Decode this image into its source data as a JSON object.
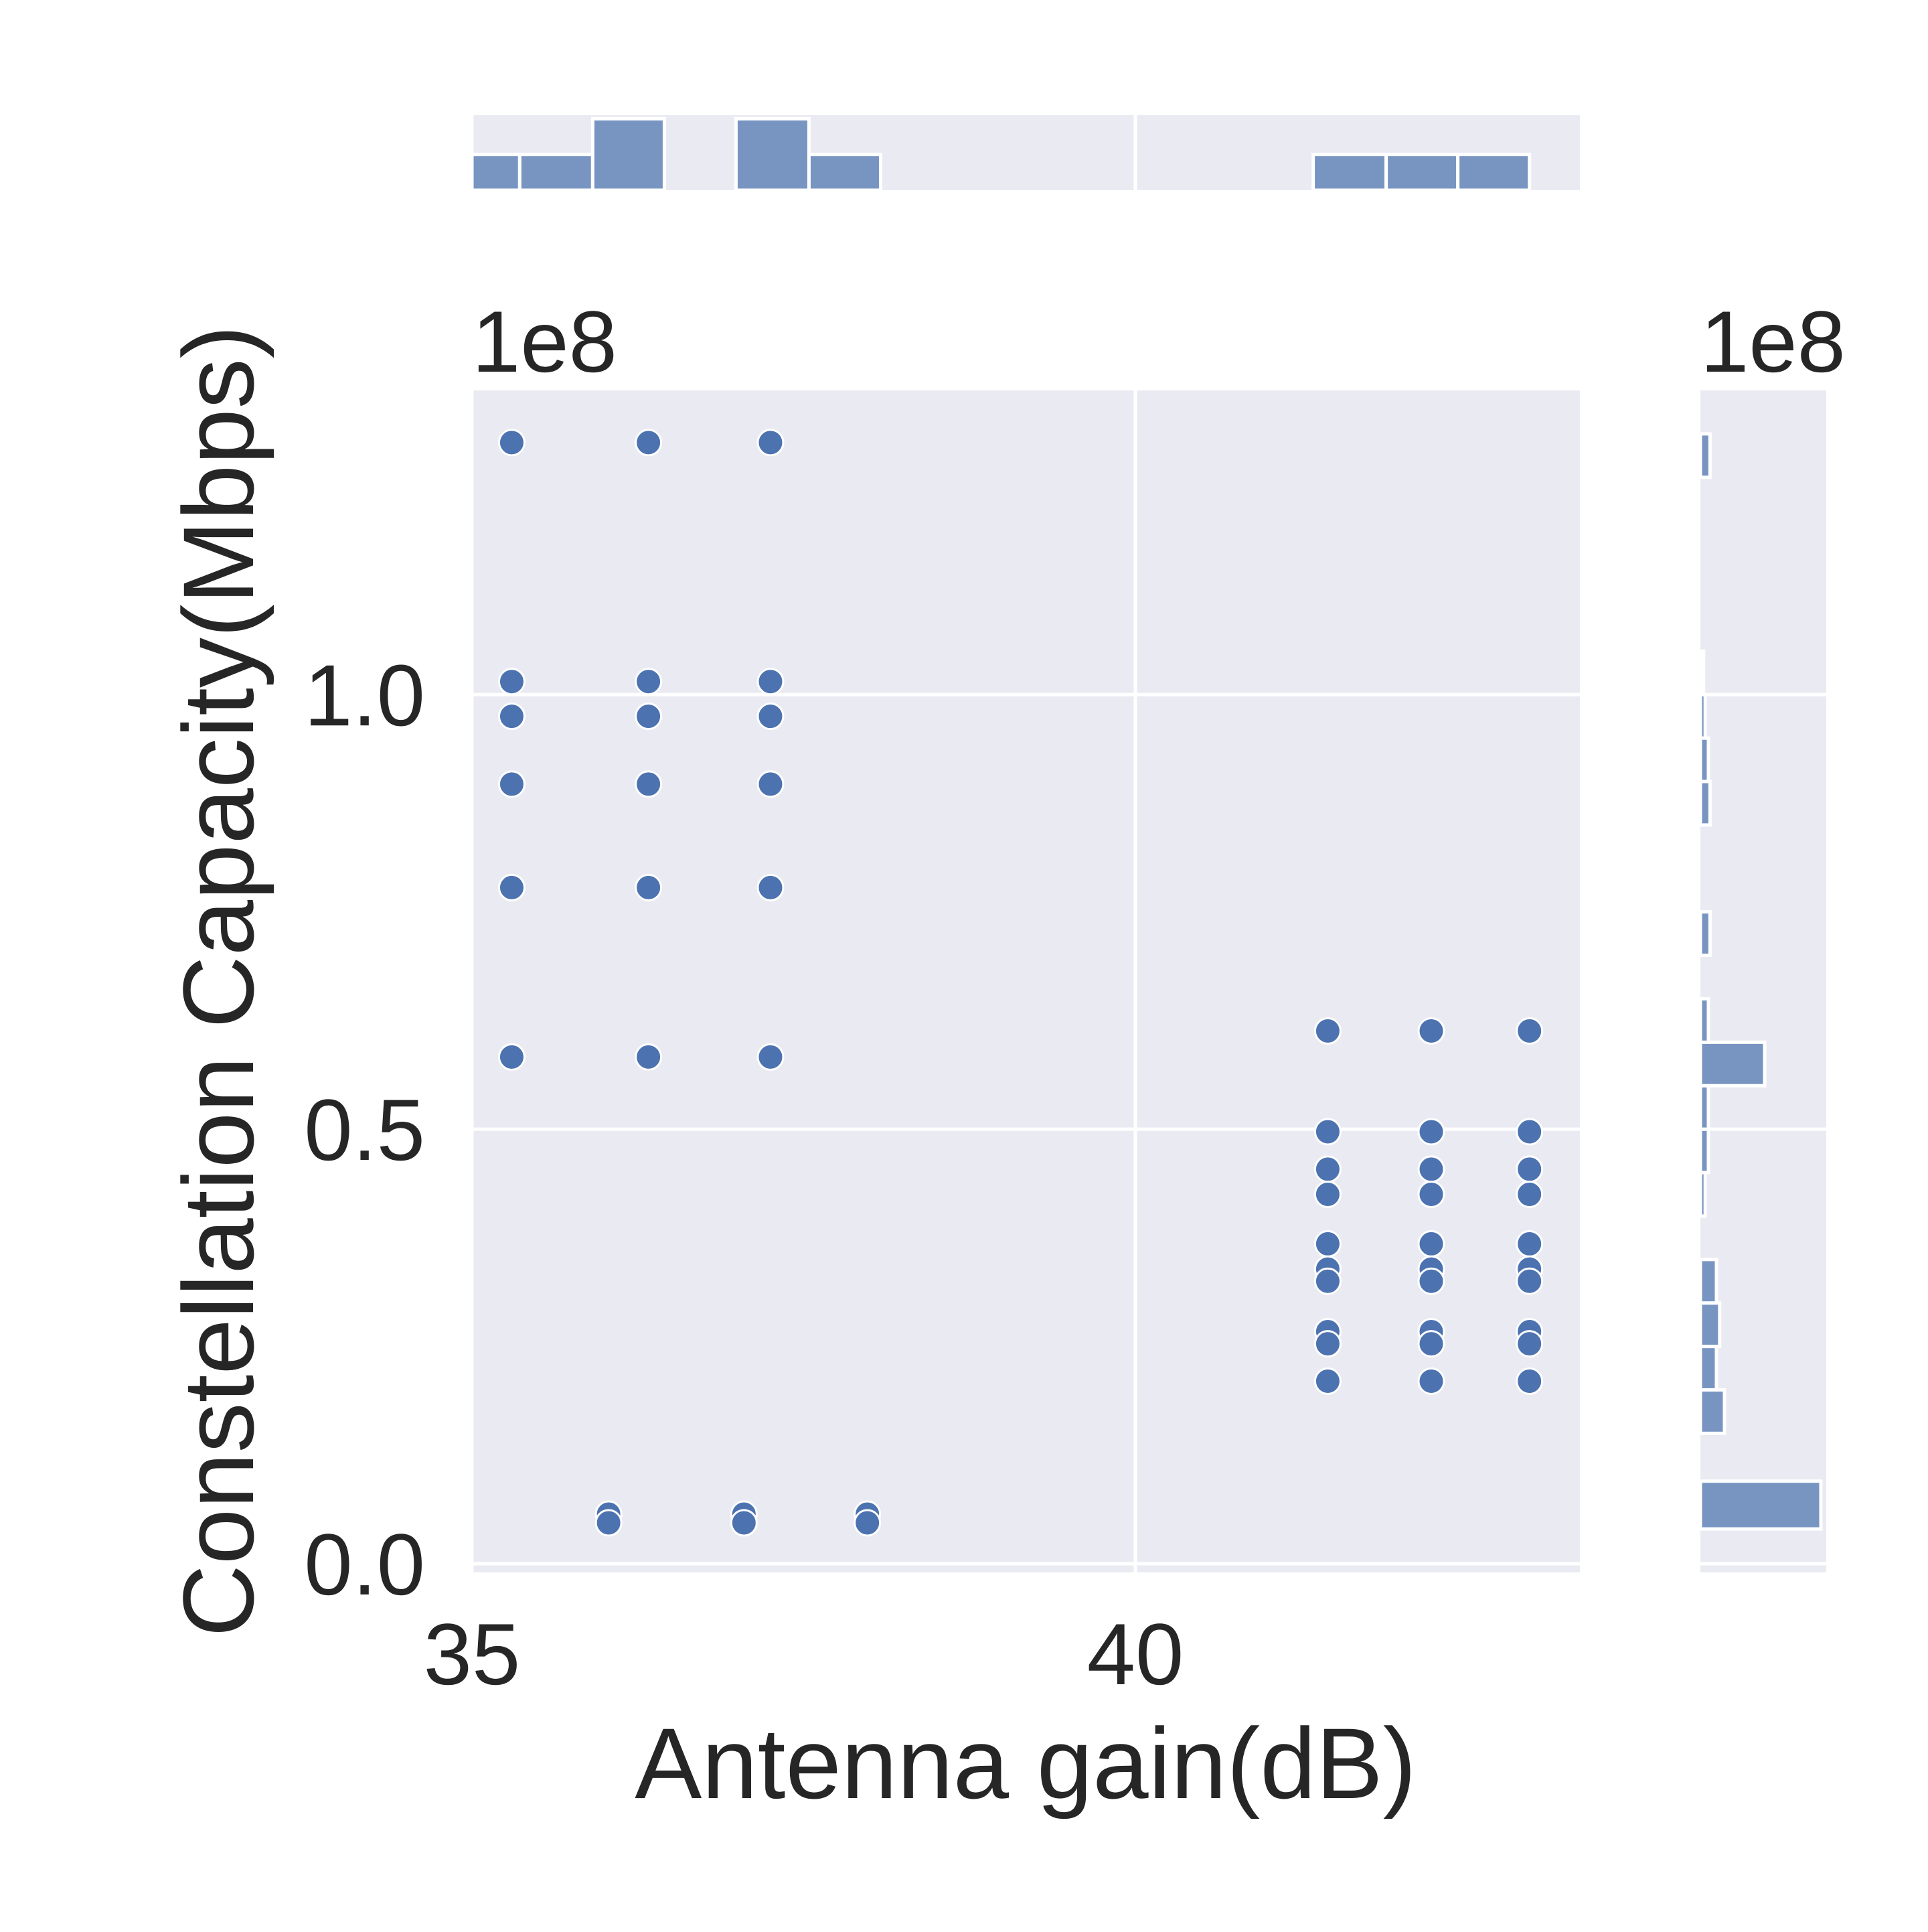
{
  "chart_data": {
    "type": "scatter",
    "xlabel": "Antenna gain(dB)",
    "ylabel": "Constellation Capacity(Mbps)",
    "x_ticks": [
      "35",
      "40"
    ],
    "x_tick_values": [
      35,
      40
    ],
    "y_ticks": [
      "0.0",
      "0.5",
      "1.0"
    ],
    "y_tick_values": [
      0,
      0.5,
      1.0
    ],
    "y_offset_label": "1e8",
    "marg_x_offset_label": "1e8",
    "xlim": [
      35.0,
      43.35
    ],
    "ylim": [
      -0.01,
      1.35
    ],
    "grid": true,
    "marker_color": "#4c72b0",
    "hist_color": "#7895c2",
    "panel_bg": "#eaeaf2",
    "points": [
      {
        "x": 35.3,
        "y": 1.29
      },
      {
        "x": 36.33,
        "y": 1.29
      },
      {
        "x": 37.25,
        "y": 1.29
      },
      {
        "x": 35.3,
        "y": 1.015
      },
      {
        "x": 36.33,
        "y": 1.015
      },
      {
        "x": 37.25,
        "y": 1.015
      },
      {
        "x": 35.3,
        "y": 0.975
      },
      {
        "x": 36.33,
        "y": 0.975
      },
      {
        "x": 37.25,
        "y": 0.975
      },
      {
        "x": 35.3,
        "y": 0.897
      },
      {
        "x": 36.33,
        "y": 0.897
      },
      {
        "x": 37.25,
        "y": 0.897
      },
      {
        "x": 35.3,
        "y": 0.778
      },
      {
        "x": 36.33,
        "y": 0.778
      },
      {
        "x": 37.25,
        "y": 0.778
      },
      {
        "x": 35.3,
        "y": 0.583
      },
      {
        "x": 36.33,
        "y": 0.583
      },
      {
        "x": 37.25,
        "y": 0.583
      },
      {
        "x": 41.45,
        "y": 0.613
      },
      {
        "x": 42.23,
        "y": 0.613
      },
      {
        "x": 42.97,
        "y": 0.613
      },
      {
        "x": 41.45,
        "y": 0.497
      },
      {
        "x": 42.23,
        "y": 0.497
      },
      {
        "x": 42.97,
        "y": 0.497
      },
      {
        "x": 41.45,
        "y": 0.454
      },
      {
        "x": 42.23,
        "y": 0.454
      },
      {
        "x": 42.97,
        "y": 0.454
      },
      {
        "x": 41.45,
        "y": 0.425
      },
      {
        "x": 42.23,
        "y": 0.425
      },
      {
        "x": 42.97,
        "y": 0.425
      },
      {
        "x": 41.45,
        "y": 0.368
      },
      {
        "x": 42.23,
        "y": 0.368
      },
      {
        "x": 42.97,
        "y": 0.368
      },
      {
        "x": 41.45,
        "y": 0.339
      },
      {
        "x": 42.23,
        "y": 0.339
      },
      {
        "x": 42.97,
        "y": 0.339
      },
      {
        "x": 41.45,
        "y": 0.325
      },
      {
        "x": 42.23,
        "y": 0.325
      },
      {
        "x": 42.97,
        "y": 0.325
      },
      {
        "x": 41.45,
        "y": 0.267
      },
      {
        "x": 42.23,
        "y": 0.267
      },
      {
        "x": 42.97,
        "y": 0.267
      },
      {
        "x": 41.45,
        "y": 0.253
      },
      {
        "x": 42.23,
        "y": 0.253
      },
      {
        "x": 42.97,
        "y": 0.253
      },
      {
        "x": 41.45,
        "y": 0.21
      },
      {
        "x": 42.23,
        "y": 0.21
      },
      {
        "x": 42.97,
        "y": 0.21
      },
      {
        "x": 36.03,
        "y": 0.057
      },
      {
        "x": 37.05,
        "y": 0.057
      },
      {
        "x": 37.98,
        "y": 0.057
      },
      {
        "x": 36.03,
        "y": 0.047
      },
      {
        "x": 37.05,
        "y": 0.047
      },
      {
        "x": 37.98,
        "y": 0.047
      }
    ],
    "x_histogram": {
      "bin_edges": [
        35.0,
        35.36,
        35.91,
        36.45,
        36.99,
        37.54,
        38.08,
        38.63,
        39.17,
        39.71,
        40.26,
        40.8,
        41.34,
        41.89,
        42.43,
        42.97,
        43.52
      ],
      "counts": [
        1,
        1,
        2,
        0,
        2,
        1,
        0,
        0,
        0,
        0,
        0,
        0,
        1,
        1,
        1,
        0
      ]
    },
    "y_histogram": {
      "bin_edges": [
        0.04,
        0.095,
        0.15,
        0.2,
        0.25,
        0.3,
        0.35,
        0.4,
        0.45,
        0.5,
        0.55,
        0.6,
        0.65,
        0.7,
        0.75,
        0.8,
        0.85,
        0.9,
        0.95,
        1.0,
        1.05,
        1.1,
        1.15,
        1.2,
        1.25,
        1.3,
        1.35
      ],
      "counts": [
        7.5,
        0,
        1.5,
        1,
        1.2,
        1,
        0,
        0.3,
        0.5,
        0.5,
        4,
        0.5,
        0,
        0.6,
        0,
        0,
        0.6,
        0.5,
        0.3,
        0.2,
        0,
        0,
        0,
        0,
        0.6,
        0
      ]
    }
  }
}
